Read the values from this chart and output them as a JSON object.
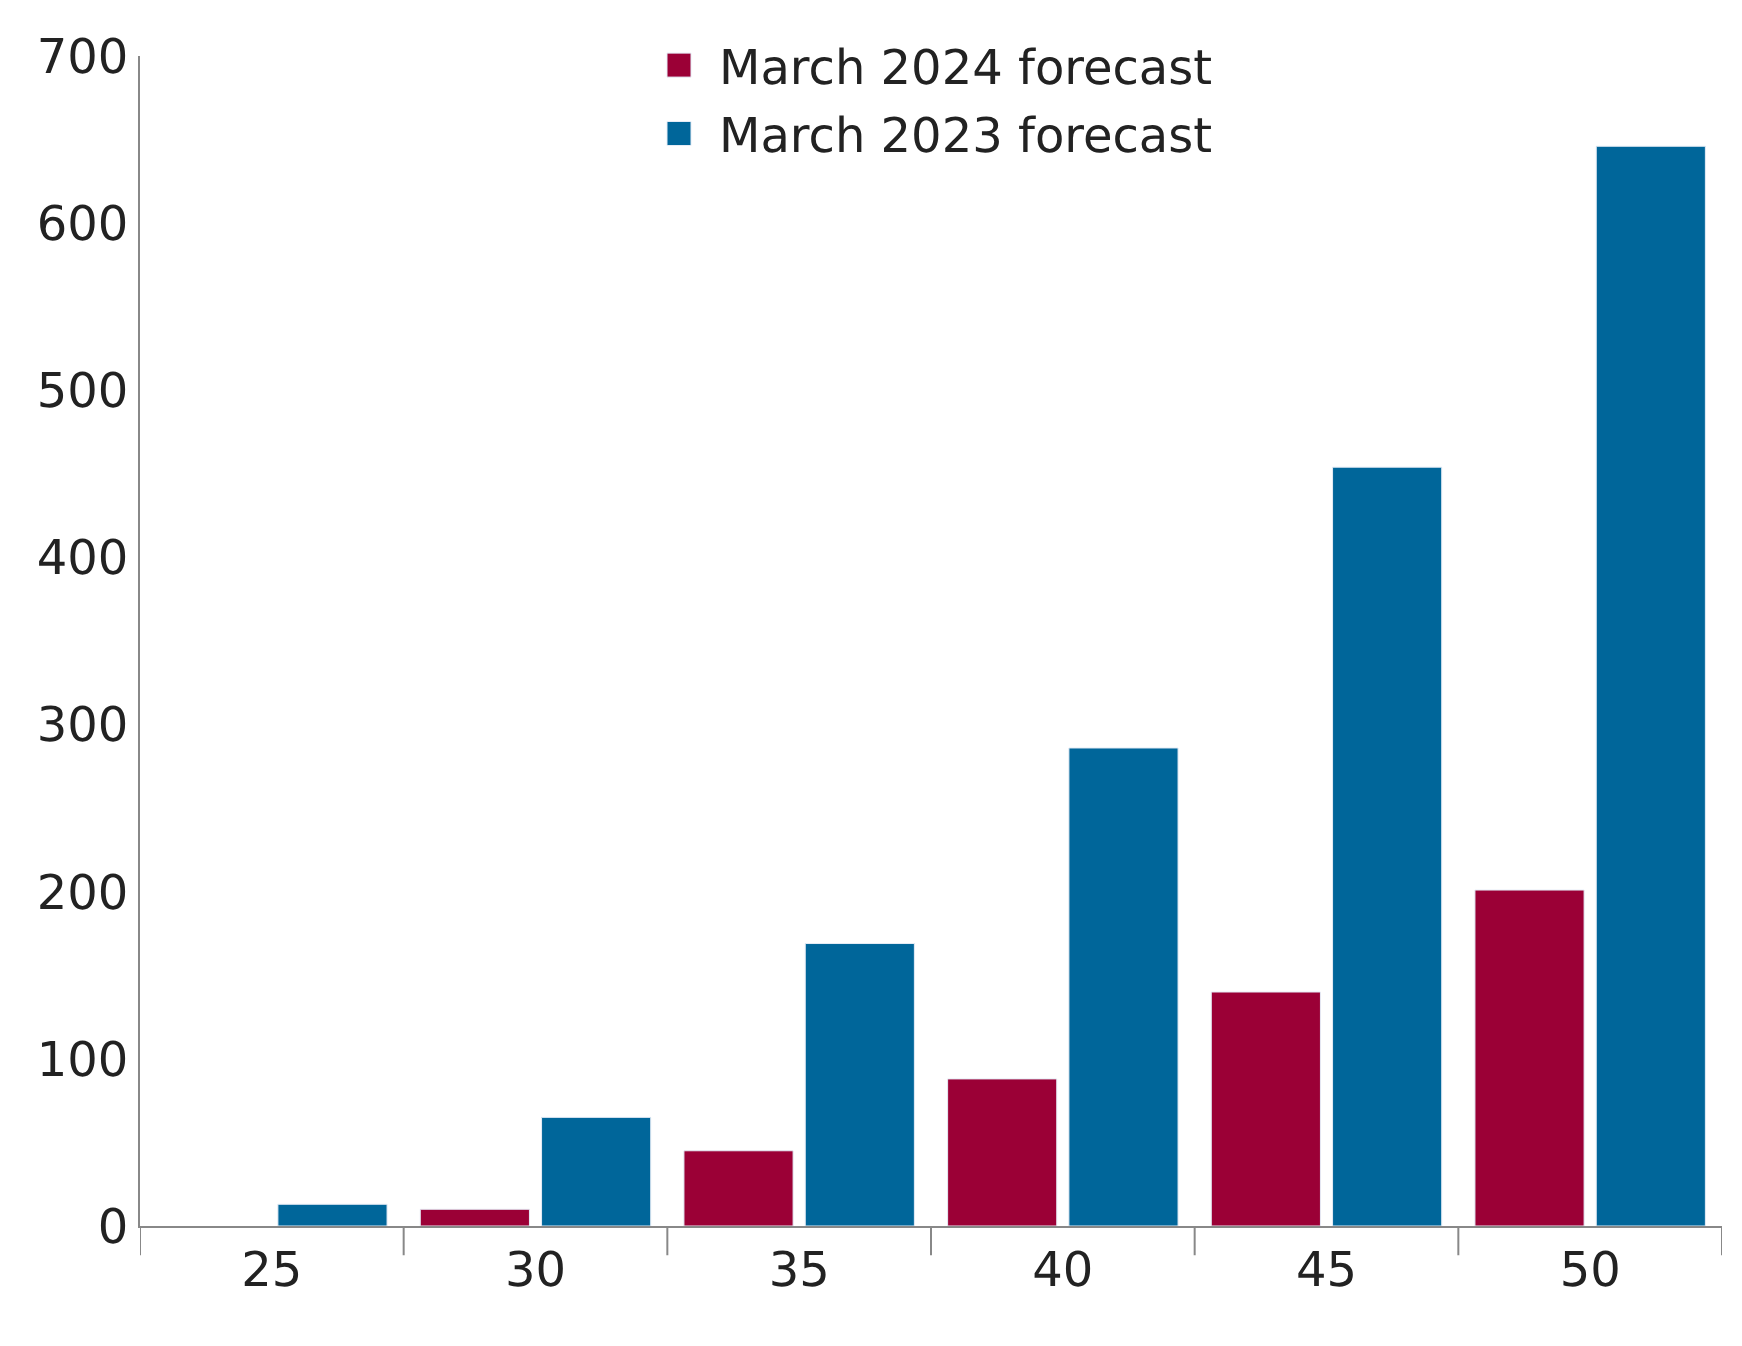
{
  "chart_data": {
    "type": "bar",
    "categories": [
      "25",
      "30",
      "35",
      "40",
      "45",
      "50"
    ],
    "series": [
      {
        "name": "March 2024 forecast",
        "color": "#9b0036",
        "values": [
          null,
          10,
          45,
          88,
          140,
          201
        ]
      },
      {
        "name": "March 2023 forecast",
        "color": "#00669a",
        "values": [
          13,
          65,
          169,
          286,
          454,
          646
        ]
      }
    ],
    "ylim": [
      0,
      700
    ],
    "yticks": [
      0,
      100,
      200,
      300,
      400,
      500,
      600,
      700
    ],
    "legend": "top"
  }
}
